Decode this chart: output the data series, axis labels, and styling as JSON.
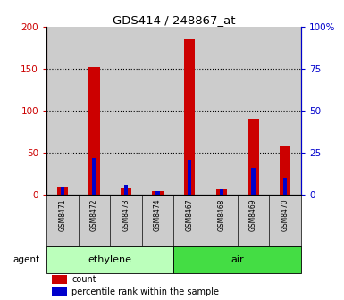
{
  "title": "GDS414 / 248867_at",
  "samples": [
    "GSM8471",
    "GSM8472",
    "GSM8473",
    "GSM8474",
    "GSM8467",
    "GSM8468",
    "GSM8469",
    "GSM8470"
  ],
  "counts": [
    8,
    152,
    7,
    4,
    185,
    6,
    90,
    58
  ],
  "percentile_ranks": [
    4,
    22,
    6,
    2,
    21,
    3,
    16,
    10
  ],
  "groups": [
    {
      "label": "ethylene",
      "color": "#bbffbb",
      "start": 0,
      "end": 4
    },
    {
      "label": "air",
      "color": "#44dd44",
      "start": 4,
      "end": 8
    }
  ],
  "agent_label": "agent",
  "ylim_left": [
    0,
    200
  ],
  "ylim_right": [
    0,
    100
  ],
  "yticks_left": [
    0,
    50,
    100,
    150,
    200
  ],
  "yticks_right": [
    0,
    25,
    50,
    75,
    100
  ],
  "ytick_labels_right": [
    "0",
    "25",
    "50",
    "75",
    "100%"
  ],
  "ytick_labels_left": [
    "0",
    "50",
    "100",
    "150",
    "200"
  ],
  "left_tick_color": "#cc0000",
  "right_tick_color": "#0000cc",
  "bar_color_count": "#cc0000",
  "bar_color_percentile": "#0000cc",
  "grid_color": "#000000",
  "bar_bg_color": "#cccccc",
  "count_bar_width": 0.35,
  "percentile_bar_width": 0.12,
  "legend_count_label": "count",
  "legend_percentile_label": "percentile rank within the sample"
}
